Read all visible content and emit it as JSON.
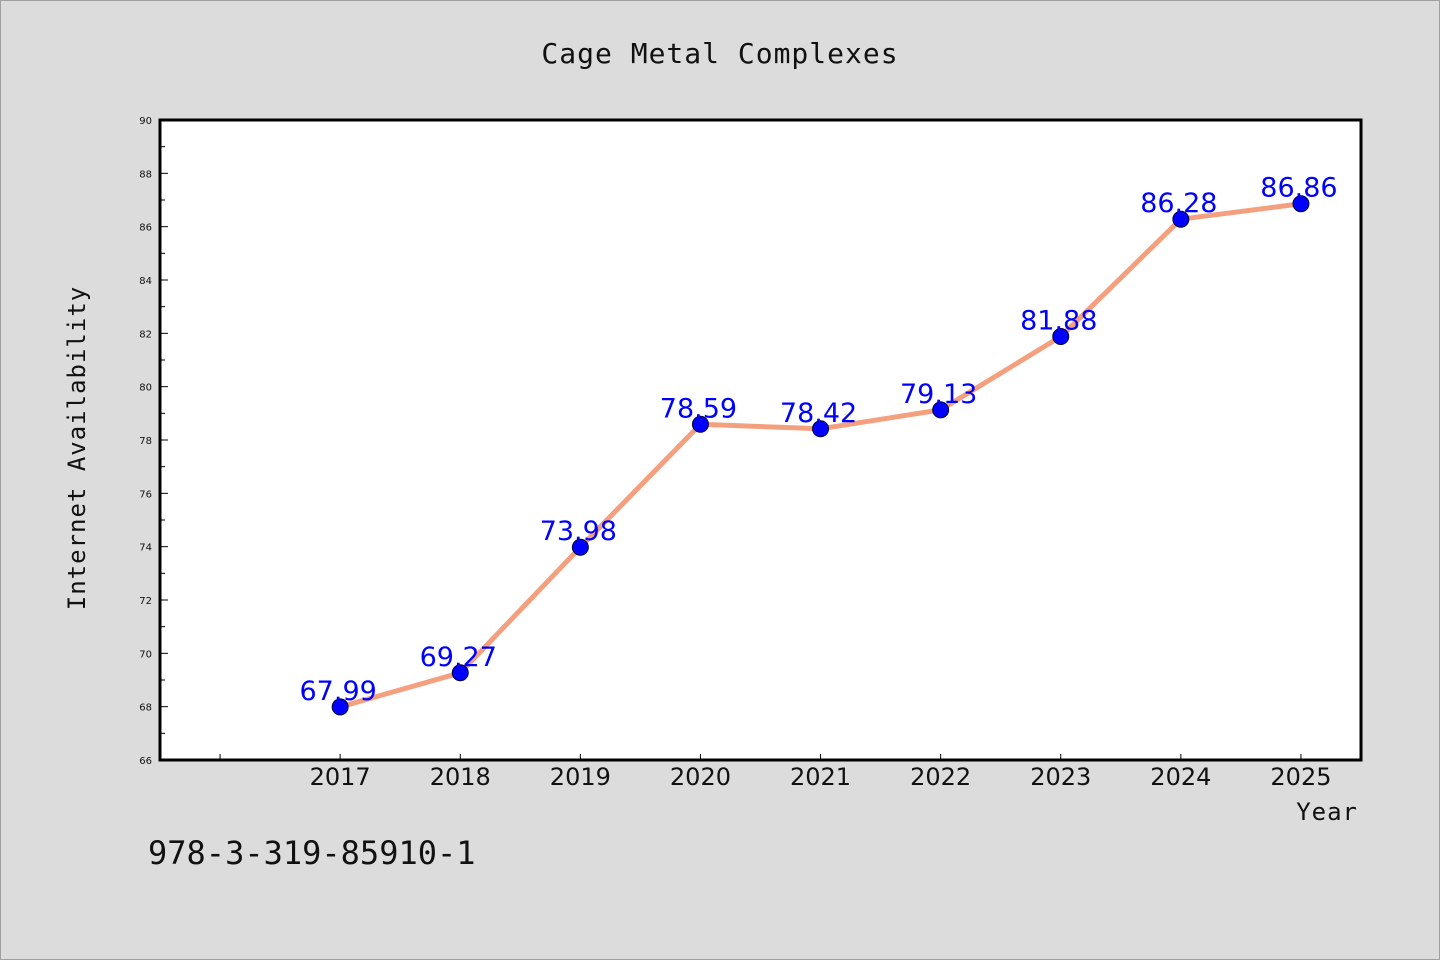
{
  "chart_data": {
    "type": "line",
    "title": "Cage Metal Complexes",
    "xlabel": "Year",
    "ylabel": "Internet Availability",
    "x": [
      "2017",
      "2018",
      "2019",
      "2020",
      "2021",
      "2022",
      "2023",
      "2024",
      "2025"
    ],
    "series": [
      {
        "values": [
          67.99,
          69.27,
          73.98,
          78.59,
          78.42,
          79.13,
          81.88,
          86.28,
          86.86
        ],
        "labels": [
          "67.99",
          "69.27",
          "73.98",
          "78.59",
          "78.42",
          "79.13",
          "81.88",
          "86.28",
          "86.86"
        ]
      }
    ],
    "ylim": [
      66,
      90
    ],
    "yticks": [
      "66",
      "68",
      "70",
      "72",
      "74",
      "76",
      "78",
      "80",
      "82",
      "84",
      "86",
      "88",
      "90"
    ],
    "grid": false,
    "colors": {
      "line": "#f4a07e",
      "marker": "#0000ff",
      "data_label": "#0000ff",
      "background": "#dcdcdc",
      "plot_background": "#ffffff"
    }
  },
  "footer": {
    "isbn": "978-3-319-85910-1"
  }
}
